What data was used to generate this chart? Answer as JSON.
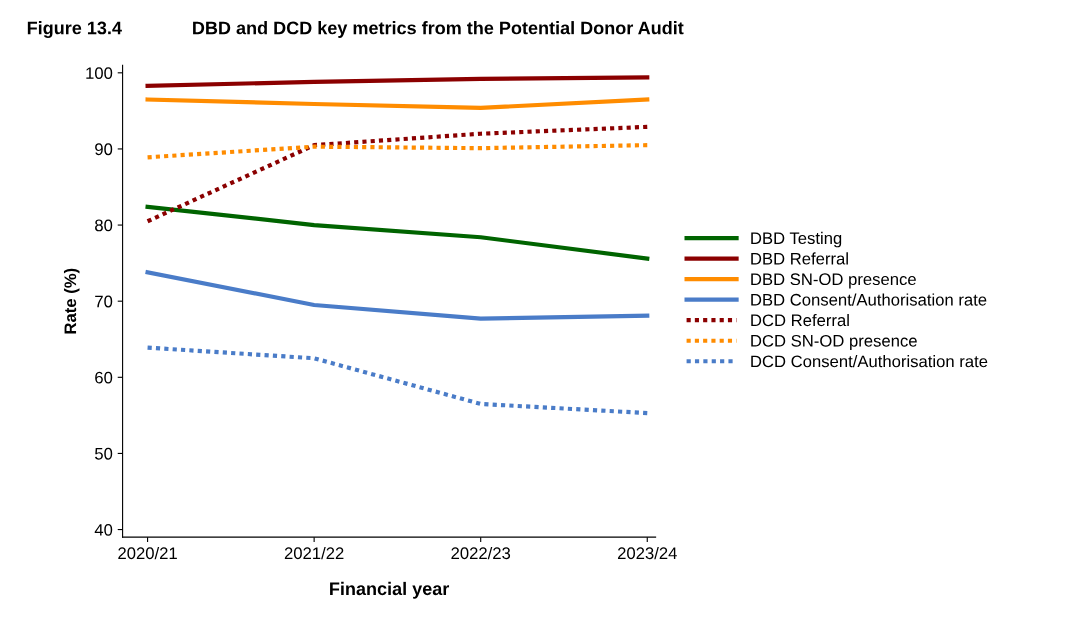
{
  "chart_data": {
    "type": "line",
    "title": "Figure 13.4",
    "subtitle": "DBD and DCD key metrics from the Potential Donor Audit",
    "xlabel": "Financial year",
    "ylabel": "Rate (%)",
    "categories": [
      "2020/21",
      "2021/22",
      "2022/23",
      "2023/24"
    ],
    "ylim": [
      39,
      101
    ],
    "yticks": [
      40,
      50,
      60,
      70,
      80,
      90,
      100
    ],
    "grid": false,
    "legend": "right",
    "marker": "none",
    "series": [
      {
        "name": "DBD Testing",
        "color": "#006400",
        "line_style": "solid",
        "values": [
          82.4,
          80.0,
          78.4,
          75.6
        ]
      },
      {
        "name": "DBD Referral",
        "color": "#8b0000",
        "line_style": "solid",
        "values": [
          98.3,
          98.8,
          99.2,
          99.4
        ]
      },
      {
        "name": "DBD SN-OD presence",
        "color": "#ff8c00",
        "line_style": "solid",
        "values": [
          96.5,
          95.9,
          95.4,
          96.5
        ]
      },
      {
        "name": "DBD Consent/Authorisation rate",
        "color": "#4a7cc8",
        "line_style": "solid",
        "values": [
          73.8,
          69.5,
          67.7,
          68.1
        ]
      },
      {
        "name": "DCD Referral",
        "color": "#8b0000",
        "line_style": "dotted",
        "values": [
          80.5,
          90.5,
          92.0,
          92.9
        ]
      },
      {
        "name": "DCD SN-OD presence",
        "color": "#ff8c00",
        "line_style": "dotted",
        "values": [
          88.9,
          90.3,
          90.1,
          90.5
        ]
      },
      {
        "name": "DCD Consent/Authorisation rate",
        "color": "#4a7cc8",
        "line_style": "dotted",
        "values": [
          63.9,
          62.5,
          56.5,
          55.3
        ]
      }
    ]
  }
}
